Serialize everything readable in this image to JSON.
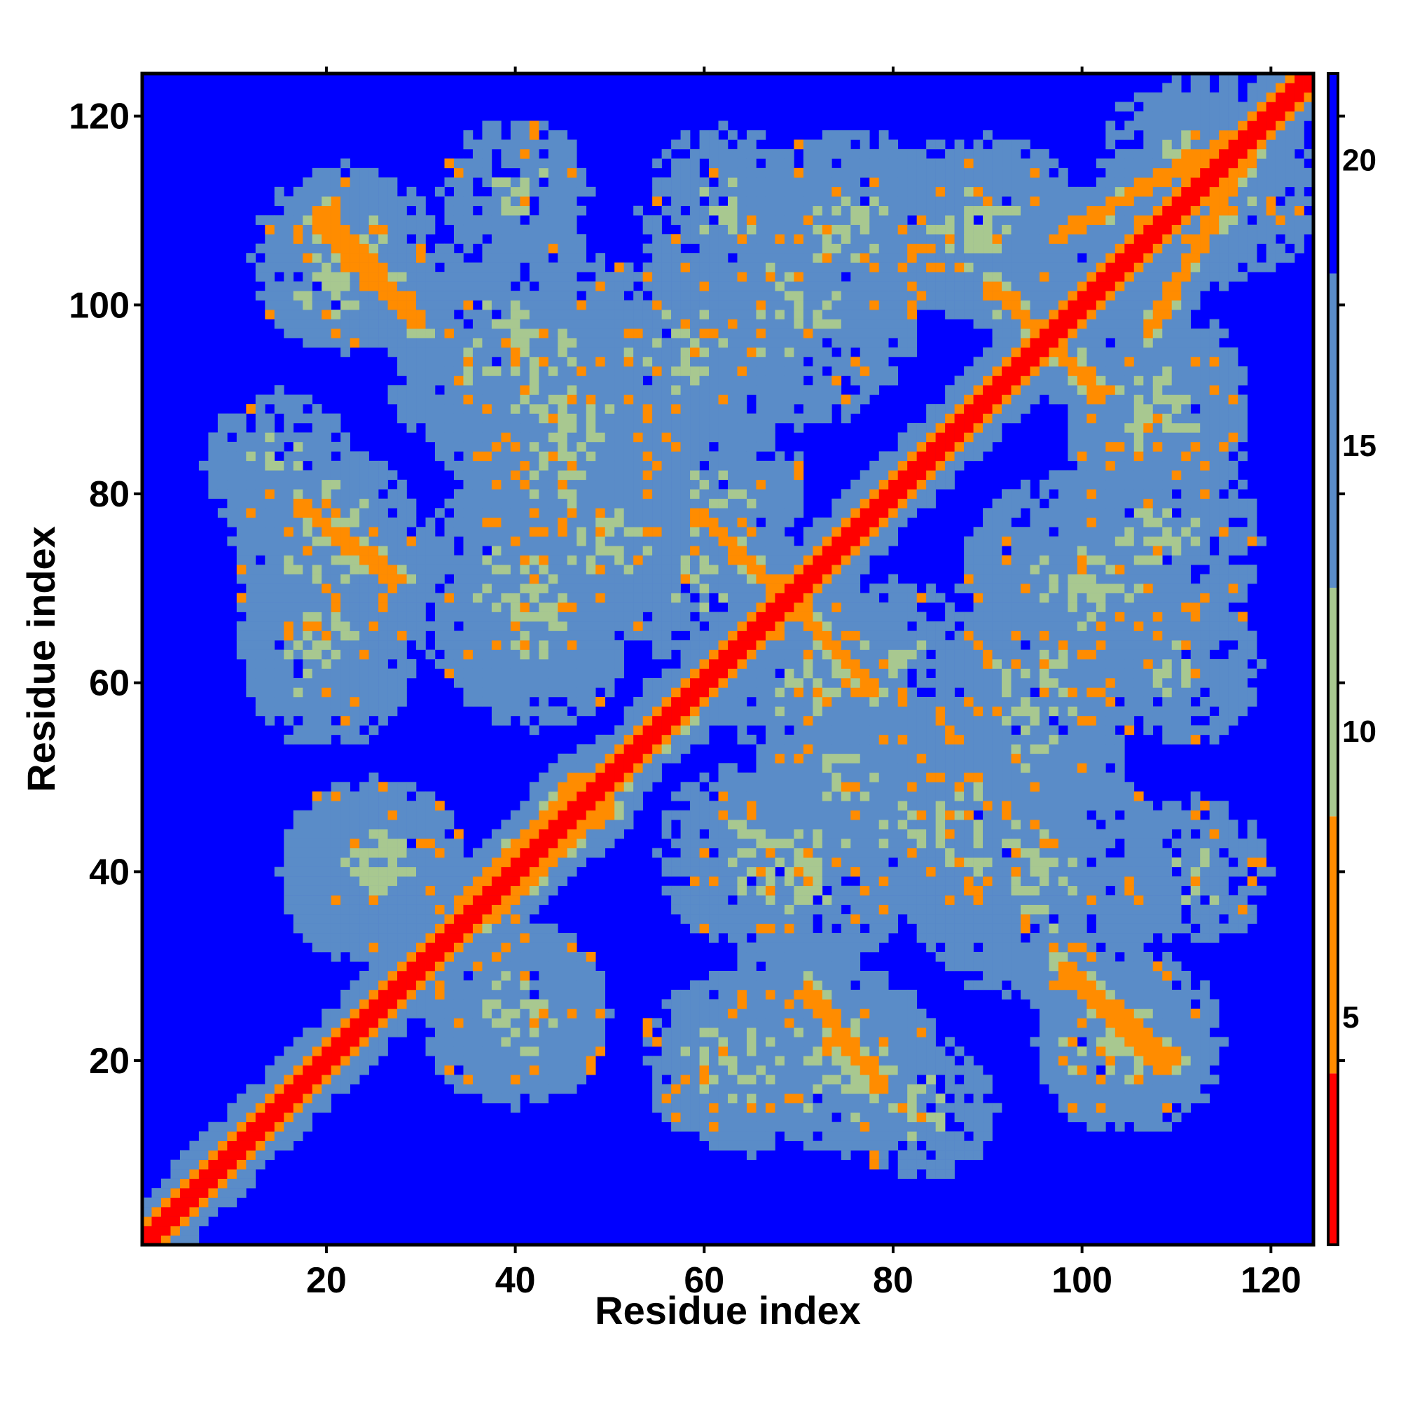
{
  "chart_data": {
    "type": "heatmap",
    "title": "",
    "xlabel": "Residue index",
    "ylabel": "Residue index",
    "n_residues": 124,
    "xlim": [
      1,
      124
    ],
    "ylim": [
      1,
      124
    ],
    "x_ticks": [
      20,
      40,
      60,
      80,
      100,
      120
    ],
    "y_ticks": [
      20,
      40,
      60,
      80,
      100,
      120
    ],
    "colorbar": {
      "min": 1,
      "max": 21.5,
      "ticks": [
        5,
        10,
        15,
        20
      ],
      "colors": [
        "#ff0000",
        "#ff8c00",
        "#a8c890",
        "#5a8cc8",
        "#0000ff"
      ]
    },
    "background_value": 21,
    "contact_bands": [
      {
        "kind": "diagonal",
        "from": [
          1,
          1
        ],
        "to": [
          124,
          124
        ],
        "core_value": 1,
        "halfwidth": 5
      },
      {
        "kind": "strand",
        "from": [
          20,
          110
        ],
        "to": [
          30,
          98
        ],
        "value": 6,
        "halfwidth": 4
      },
      {
        "kind": "strand",
        "from": [
          17,
          79
        ],
        "to": [
          27,
          71
        ],
        "value": 6,
        "halfwidth": 4
      },
      {
        "kind": "strand",
        "from": [
          59,
          78
        ],
        "to": [
          70,
          68
        ],
        "value": 6,
        "halfwidth": 4
      },
      {
        "kind": "strand",
        "from": [
          70,
          68
        ],
        "to": [
          78,
          59
        ],
        "value": 6,
        "halfwidth": 4
      },
      {
        "kind": "strand",
        "from": [
          92,
          101
        ],
        "to": [
          102,
          90
        ],
        "value": 6,
        "halfwidth": 4
      },
      {
        "kind": "strand",
        "from": [
          71,
          28
        ],
        "to": [
          78,
          18
        ],
        "value": 6,
        "halfwidth": 4
      },
      {
        "kind": "strand",
        "from": [
          98,
          30
        ],
        "to": [
          109,
          19
        ],
        "value": 6,
        "halfwidth": 4
      },
      {
        "kind": "strand",
        "from": [
          50,
          48
        ],
        "to": [
          56,
          58
        ],
        "value": 7,
        "halfwidth": 3
      },
      {
        "kind": "strand",
        "from": [
          35,
          37
        ],
        "to": [
          47,
          50
        ],
        "value": 7,
        "halfwidth": 3
      },
      {
        "kind": "strand",
        "from": [
          78,
          78
        ],
        "to": [
          92,
          92
        ],
        "value": 7,
        "halfwidth": 3
      },
      {
        "kind": "strand",
        "from": [
          97,
          107
        ],
        "to": [
          120,
          120
        ],
        "value": 7,
        "halfwidth": 3
      }
    ],
    "contact_blobs": [
      {
        "center": [
          22,
          104
        ],
        "value": 11,
        "radius": 9
      },
      {
        "center": [
          40,
          95
        ],
        "value": 12,
        "radius": 14
      },
      {
        "center": [
          60,
          95
        ],
        "value": 12,
        "radius": 10
      },
      {
        "center": [
          75,
          108
        ],
        "value": 12,
        "radius": 11
      },
      {
        "center": [
          90,
          108
        ],
        "value": 12,
        "radius": 10
      },
      {
        "center": [
          112,
          115
        ],
        "value": 12,
        "radius": 10
      },
      {
        "center": [
          20,
          75
        ],
        "value": 11,
        "radius": 10
      },
      {
        "center": [
          40,
          70
        ],
        "value": 12,
        "radius": 12
      },
      {
        "center": [
          45,
          82
        ],
        "value": 12,
        "radius": 10
      },
      {
        "center": [
          20,
          62
        ],
        "value": 12,
        "radius": 9
      },
      {
        "center": [
          100,
          70
        ],
        "value": 12,
        "radius": 13
      },
      {
        "center": [
          108,
          88
        ],
        "value": 12,
        "radius": 10
      },
      {
        "center": [
          110,
          62
        ],
        "value": 12,
        "radius": 9
      },
      {
        "center": [
          88,
          45
        ],
        "value": 12,
        "radius": 13
      },
      {
        "center": [
          75,
          50
        ],
        "value": 12,
        "radius": 10
      },
      {
        "center": [
          65,
          42
        ],
        "value": 12,
        "radius": 10
      },
      {
        "center": [
          95,
          55
        ],
        "value": 12,
        "radius": 10
      },
      {
        "center": [
          25,
          40
        ],
        "value": 12,
        "radius": 10
      },
      {
        "center": [
          40,
          25
        ],
        "value": 12,
        "radius": 10
      },
      {
        "center": [
          65,
          20
        ],
        "value": 12,
        "radius": 10
      },
      {
        "center": [
          83,
          15
        ],
        "value": 12,
        "radius": 8
      },
      {
        "center": [
          105,
          22
        ],
        "value": 12,
        "radius": 10
      },
      {
        "center": [
          112,
          40
        ],
        "value": 12,
        "radius": 8
      },
      {
        "center": [
          60,
          70
        ],
        "value": 12,
        "radius": 9
      },
      {
        "center": [
          80,
          62
        ],
        "value": 12,
        "radius": 9
      }
    ]
  }
}
